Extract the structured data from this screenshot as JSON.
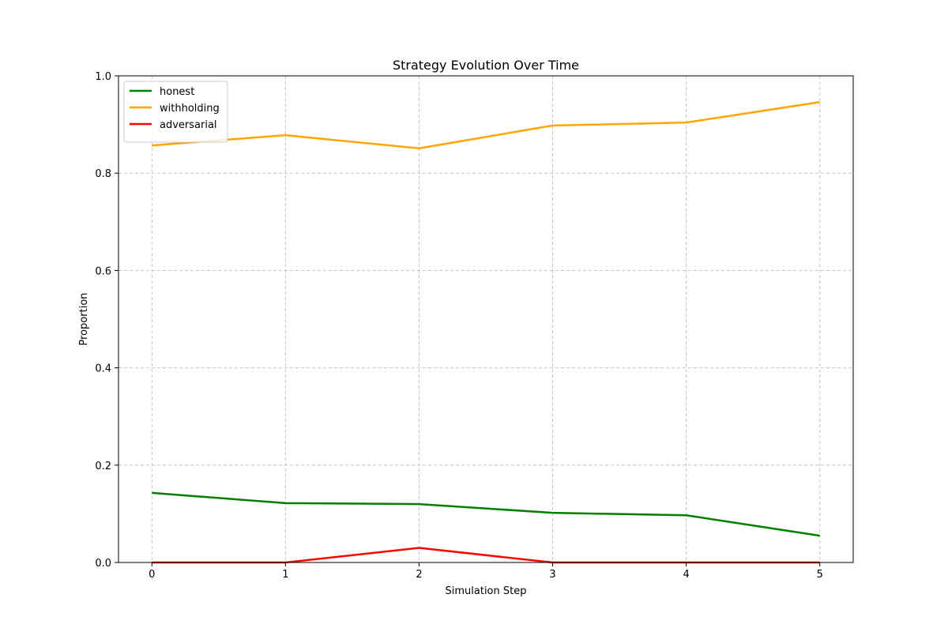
{
  "chart_data": {
    "type": "line",
    "title": "Strategy Evolution Over Time",
    "xlabel": "Simulation Step",
    "ylabel": "Proportion",
    "x": [
      0,
      1,
      2,
      3,
      4,
      5
    ],
    "xlim": [
      -0.25,
      5.25
    ],
    "ylim": [
      0,
      1.0
    ],
    "xticks": [
      "0",
      "1",
      "2",
      "3",
      "4",
      "5"
    ],
    "yticks": [
      "0.0",
      "0.2",
      "0.4",
      "0.6",
      "0.8",
      "1.0"
    ],
    "grid": true,
    "legend_position": "top-left",
    "series": [
      {
        "name": "honest",
        "color": "#008000",
        "values": [
          0.143,
          0.122,
          0.12,
          0.102,
          0.097,
          0.055
        ]
      },
      {
        "name": "withholding",
        "color": "#ffa500",
        "values": [
          0.857,
          0.878,
          0.851,
          0.898,
          0.904,
          0.946
        ]
      },
      {
        "name": "adversarial",
        "color": "#ff0000",
        "values": [
          0.0,
          0.0,
          0.03,
          0.0,
          0.0,
          0.0
        ]
      }
    ]
  }
}
